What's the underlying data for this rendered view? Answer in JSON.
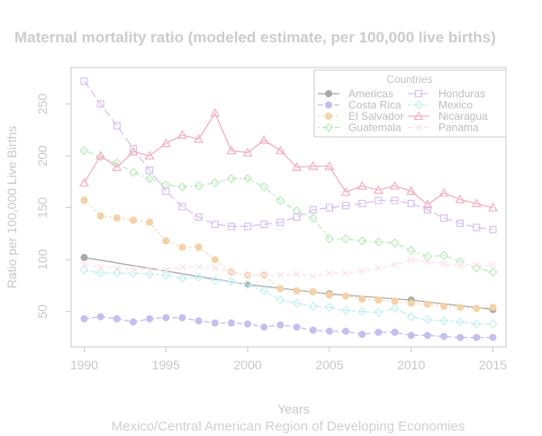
{
  "chart_data": {
    "type": "line",
    "title": "Maternal mortality ratio (modeled estimate, per 100,000 live births)",
    "xlabel": "Years",
    "ylabel": "Ratio per 100,000 Live Births",
    "subtitle": "Mexico/Central American Region of Developing Economies",
    "xlim": [
      1989.2,
      2015.8
    ],
    "ylim": [
      16,
      285
    ],
    "x_ticks": [
      1990,
      1995,
      2000,
      2005,
      2010,
      2015
    ],
    "y_ticks": [
      50,
      100,
      150,
      200,
      250
    ],
    "legend": {
      "title": "Countries",
      "placement": "top-right",
      "columns": 2
    },
    "x": [
      1990,
      1991,
      1992,
      1993,
      1994,
      1995,
      1996,
      1997,
      1998,
      1999,
      2000,
      2001,
      2002,
      2003,
      2004,
      2005,
      2006,
      2007,
      2008,
      2009,
      2010,
      2011,
      2012,
      2013,
      2014,
      2015
    ],
    "series": [
      {
        "name": "Americas",
        "color": "#a9a9a9",
        "marker": "dot",
        "dash": "solid",
        "values": [
          102,
          null,
          null,
          null,
          null,
          null,
          null,
          null,
          null,
          null,
          76,
          null,
          null,
          null,
          null,
          67,
          null,
          null,
          null,
          null,
          61,
          null,
          null,
          null,
          null,
          52
        ]
      },
      {
        "name": "Costa Rica",
        "color": "#c3c0ee",
        "marker": "dot",
        "dash": "dashed",
        "values": [
          43,
          45,
          43,
          40,
          43,
          44,
          44,
          41,
          39,
          39,
          38,
          35,
          37,
          35,
          32,
          31,
          31,
          28,
          30,
          30,
          27,
          27,
          26,
          25,
          25,
          25
        ]
      },
      {
        "name": "El Salvador",
        "color": "#f4d2a8",
        "marker": "dot",
        "dash": "dotted",
        "values": [
          157,
          142,
          140,
          138,
          136,
          118,
          112,
          112,
          100,
          88,
          85,
          85,
          72,
          70,
          69,
          66,
          65,
          62,
          61,
          60,
          58,
          57,
          55,
          54,
          53,
          54
        ]
      },
      {
        "name": "Guatemala",
        "color": "#bfeabe",
        "marker": "diamond",
        "dash": "dotdash",
        "values": [
          205,
          199,
          193,
          184,
          178,
          172,
          170,
          171,
          174,
          178,
          178,
          170,
          157,
          147,
          140,
          120,
          120,
          118,
          117,
          116,
          109,
          103,
          104,
          98,
          92,
          88
        ]
      },
      {
        "name": "Honduras",
        "color": "#d9c3ee",
        "marker": "square",
        "dash": "longdash",
        "values": [
          272,
          250,
          229,
          207,
          186,
          166,
          151,
          141,
          134,
          132,
          132,
          134,
          136,
          141,
          148,
          150,
          152,
          154,
          157,
          157,
          154,
          148,
          140,
          135,
          131,
          129
        ]
      },
      {
        "name": "Mexico",
        "color": "#c6f0ee",
        "marker": "diamond",
        "dash": "twodash",
        "values": [
          90,
          87,
          87,
          87,
          86,
          85,
          82,
          83,
          80,
          79,
          76,
          70,
          61,
          58,
          55,
          54,
          51,
          50,
          49,
          53,
          45,
          42,
          41,
          40,
          38,
          38
        ]
      },
      {
        "name": "Nicaragua",
        "color": "#f2b2c0",
        "marker": "triangle",
        "dash": "solid",
        "values": [
          174,
          200,
          189,
          204,
          200,
          212,
          220,
          216,
          241,
          205,
          203,
          215,
          205,
          189,
          190,
          190,
          165,
          171,
          167,
          171,
          166,
          153,
          164,
          158,
          154,
          150
        ]
      },
      {
        "name": "Panama",
        "color": "#fbe3ee",
        "marker": "x",
        "dash": "dashed",
        "values": [
          95,
          93,
          92,
          91,
          90,
          90,
          93,
          93,
          92,
          88,
          85,
          85,
          85,
          86,
          84,
          87,
          87,
          89,
          92,
          95,
          100,
          98,
          96,
          94,
          94,
          95
        ]
      }
    ]
  }
}
